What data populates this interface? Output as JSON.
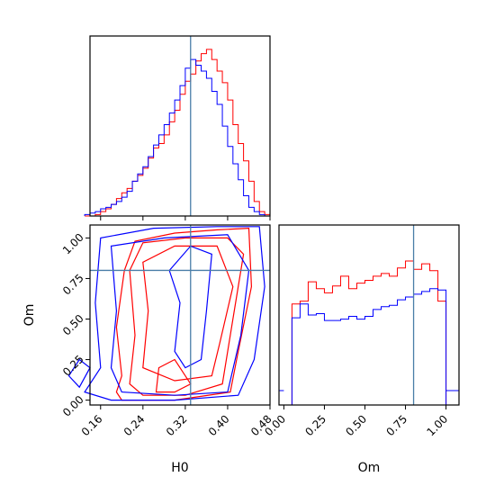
{
  "chart_data": {
    "type": "corner",
    "parameters": [
      "H0",
      "Om"
    ],
    "truth": {
      "H0": 0.33,
      "Om": 0.8
    },
    "truth_color": "#4a7ea8",
    "series": [
      {
        "name": "",
        "color": "#ff0000"
      },
      {
        "name": "",
        "color": "#0000ff"
      }
    ],
    "h0_histogram": {
      "bins": [
        0.13,
        0.14,
        0.15,
        0.16,
        0.17,
        0.18,
        0.19,
        0.2,
        0.21,
        0.22,
        0.23,
        0.24,
        0.25,
        0.26,
        0.27,
        0.28,
        0.29,
        0.3,
        0.31,
        0.32,
        0.33,
        0.34,
        0.35,
        0.36,
        0.37,
        0.38,
        0.39,
        0.4,
        0.41,
        0.42,
        0.43,
        0.44,
        0.45,
        0.46,
        0.47,
        0.48
      ],
      "red": [
        0,
        0,
        1,
        3,
        5,
        8,
        12,
        16,
        19,
        24,
        28,
        33,
        40,
        47,
        50,
        56,
        65,
        73,
        84,
        93,
        98,
        107,
        112,
        115,
        108,
        100,
        92,
        80,
        63,
        50,
        38,
        24,
        10,
        3,
        1
      ],
      "blue": [
        1,
        2,
        3,
        5,
        6,
        8,
        10,
        13,
        17,
        24,
        29,
        34,
        41,
        49,
        56,
        63,
        71,
        80,
        90,
        102,
        108,
        104,
        100,
        95,
        86,
        77,
        62,
        48,
        36,
        25,
        14,
        6,
        3,
        1,
        0
      ]
    },
    "om_histogram": {
      "bins": [
        0.0,
        0.05,
        0.1,
        0.15,
        0.2,
        0.25,
        0.3,
        0.35,
        0.4,
        0.45,
        0.5,
        0.55,
        0.6,
        0.65,
        0.7,
        0.75,
        0.8,
        0.85,
        0.9,
        0.95,
        1.0
      ],
      "red": [
        0,
        73,
        75,
        89,
        84,
        81,
        86,
        93,
        84,
        88,
        90,
        93,
        95,
        93,
        99,
        104,
        98,
        102,
        97,
        75,
        0
      ],
      "blue": [
        0,
        63,
        73,
        65,
        66,
        61,
        61,
        62,
        64,
        62,
        64,
        69,
        71,
        72,
        76,
        78,
        80,
        82,
        84,
        83,
        0
      ]
    },
    "x_axis": {
      "label": "H0",
      "range": [
        0.14,
        0.48
      ],
      "ticks": [
        "0.16",
        "0.24",
        "0.32",
        "0.40",
        "0.48"
      ]
    },
    "y_axis": {
      "label": "Om",
      "range": [
        -0.03,
        1.08
      ],
      "ticks": [
        "0.00",
        "0.25",
        "0.50",
        "0.75",
        "1.00"
      ]
    },
    "om_axis": {
      "label": "Om",
      "range": [
        -0.03,
        1.08
      ],
      "ticks": [
        "0.00",
        "0.25",
        "0.50",
        "0.75",
        "1.00"
      ]
    },
    "red_contours": [
      [
        [
          0.19,
          0.05
        ],
        [
          0.2,
          0.15
        ],
        [
          0.19,
          0.45
        ],
        [
          0.205,
          0.8
        ],
        [
          0.225,
          0.98
        ],
        [
          0.3,
          1.03
        ],
        [
          0.38,
          1.05
        ],
        [
          0.44,
          1.06
        ],
        [
          0.445,
          0.7
        ],
        [
          0.42,
          0.3
        ],
        [
          0.405,
          0.05
        ],
        [
          0.3,
          0.0
        ],
        [
          0.2,
          0.0
        ]
      ],
      [
        [
          0.215,
          0.1
        ],
        [
          0.225,
          0.4
        ],
        [
          0.215,
          0.8
        ],
        [
          0.24,
          0.97
        ],
        [
          0.32,
          1.0
        ],
        [
          0.4,
          1.0
        ],
        [
          0.43,
          0.9
        ],
        [
          0.41,
          0.5
        ],
        [
          0.39,
          0.1
        ],
        [
          0.32,
          0.03
        ],
        [
          0.24,
          0.03
        ]
      ],
      [
        [
          0.24,
          0.2
        ],
        [
          0.25,
          0.55
        ],
        [
          0.24,
          0.85
        ],
        [
          0.3,
          0.95
        ],
        [
          0.38,
          0.95
        ],
        [
          0.41,
          0.7
        ],
        [
          0.385,
          0.35
        ],
        [
          0.37,
          0.15
        ],
        [
          0.3,
          0.12
        ]
      ],
      [
        [
          0.265,
          0.05
        ],
        [
          0.27,
          0.2
        ],
        [
          0.3,
          0.25
        ],
        [
          0.33,
          0.1
        ],
        [
          0.3,
          0.05
        ]
      ]
    ],
    "blue_contours": [
      [
        [
          0.13,
          0.05
        ],
        [
          0.16,
          0.2
        ],
        [
          0.15,
          0.6
        ],
        [
          0.16,
          1.0
        ],
        [
          0.26,
          1.06
        ],
        [
          0.38,
          1.07
        ],
        [
          0.46,
          1.07
        ],
        [
          0.47,
          0.7
        ],
        [
          0.45,
          0.25
        ],
        [
          0.42,
          0.03
        ],
        [
          0.3,
          0.0
        ],
        [
          0.18,
          0.0
        ]
      ],
      [
        [
          0.18,
          0.2
        ],
        [
          0.19,
          0.55
        ],
        [
          0.18,
          0.95
        ],
        [
          0.28,
          1.0
        ],
        [
          0.4,
          1.02
        ],
        [
          0.44,
          0.8
        ],
        [
          0.425,
          0.4
        ],
        [
          0.4,
          0.05
        ],
        [
          0.3,
          0.03
        ],
        [
          0.2,
          0.05
        ]
      ],
      [
        [
          0.3,
          0.3
        ],
        [
          0.31,
          0.6
        ],
        [
          0.29,
          0.8
        ],
        [
          0.33,
          0.95
        ],
        [
          0.37,
          0.9
        ],
        [
          0.36,
          0.55
        ],
        [
          0.35,
          0.25
        ],
        [
          0.32,
          0.2
        ]
      ],
      [
        [
          0.1,
          0.15
        ],
        [
          0.12,
          0.25
        ],
        [
          0.14,
          0.2
        ],
        [
          0.12,
          0.08
        ]
      ]
    ]
  }
}
